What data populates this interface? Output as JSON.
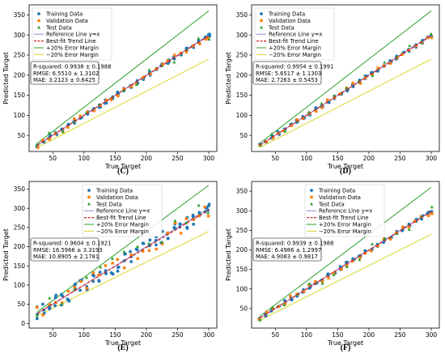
{
  "colors": {
    "training": "#1f77b4",
    "validation": "#ff7f0e",
    "test": "#2ca02c",
    "reference": "#8a8ad6",
    "trend": "#d62728",
    "plus20": "#2ca02c",
    "minus20": "#d6d62a"
  },
  "chart_data": [
    {
      "type": "scatter",
      "caption": "(C)",
      "xlabel": "True Target",
      "ylabel": "Predicted Target",
      "xlim": [
        12,
        313
      ],
      "ylim": [
        10,
        375
      ],
      "x_ticks": [
        50,
        100,
        150,
        200,
        250,
        300
      ],
      "y_ticks": [
        50,
        100,
        150,
        200,
        250,
        300,
        350
      ],
      "legend": [
        "Training Data",
        "Validation Data",
        "Test Data",
        "Reference Line y=x",
        "Best-fit Trend Line",
        "+20% Error Margin",
        "−20% Error Margin"
      ],
      "legend_position": "top-left",
      "stats": [
        "R-squared: 0.9938 ± 0.1988",
        "RMSE: 6.5510 ± 1.3102",
        "MAE: 3.2123 ± 0.6425"
      ],
      "trend": {
        "slope": 0.99,
        "intercept": 1.0
      },
      "noise": {
        "train": 5,
        "val": 7,
        "test": 12
      },
      "x": [
        25,
        35,
        45,
        55,
        65,
        75,
        85,
        95,
        105,
        115,
        125,
        135,
        145,
        155,
        165,
        175,
        185,
        195,
        205,
        215,
        225,
        235,
        245,
        255,
        265,
        275,
        285,
        295,
        300
      ]
    },
    {
      "type": "scatter",
      "caption": "(D)",
      "xlabel": "True Target",
      "ylabel": "Predicted Target",
      "xlim": [
        12,
        313
      ],
      "ylim": [
        10,
        375
      ],
      "x_ticks": [
        50,
        100,
        150,
        200,
        250,
        300
      ],
      "y_ticks": [
        50,
        100,
        150,
        200,
        250,
        300,
        350
      ],
      "legend": [
        "Training Data",
        "Validation Data",
        "Test Data",
        "Reference Line y=x",
        "Best-fit Trend Line",
        "+20% Error Margin",
        "−20% Error Margin"
      ],
      "legend_position": "top-left",
      "stats": [
        "R-squared: 0.9954 ± 0.1991",
        "RMSE: 5.6517 ± 1.1303",
        "MAE: 2.7263 ± 0.5453"
      ],
      "trend": {
        "slope": 0.99,
        "intercept": 1.0
      },
      "noise": {
        "train": 4,
        "val": 6,
        "test": 10
      },
      "x": [
        25,
        35,
        45,
        55,
        65,
        75,
        85,
        95,
        105,
        115,
        125,
        135,
        145,
        155,
        165,
        175,
        185,
        195,
        205,
        215,
        225,
        235,
        245,
        255,
        265,
        275,
        285,
        295,
        300
      ]
    },
    {
      "type": "scatter",
      "caption": "(E)",
      "xlabel": "True Target",
      "ylabel": "Predicted Target",
      "xlim": [
        12,
        313
      ],
      "ylim": [
        -12,
        370
      ],
      "x_ticks": [
        50,
        100,
        150,
        200,
        250,
        300
      ],
      "y_ticks": [
        0,
        50,
        100,
        150,
        200,
        250,
        300,
        350
      ],
      "legend": [
        "Training Data",
        "Validation Data",
        "Test Data",
        "Reference Line y=x",
        "Best-fit Trend Line",
        "+20% Error Margin",
        "−20% Error Margin"
      ],
      "legend_position": "top-center",
      "stats": [
        "R-squared: 0.9604 ± 0.1921",
        "RMSE: 16.5966 ± 3.3193",
        "MAE: 10.8905 ± 2.1781"
      ],
      "trend": {
        "slope": 0.98,
        "intercept": 2.0
      },
      "noise": {
        "train": 18,
        "val": 20,
        "test": 28
      },
      "x": [
        25,
        35,
        45,
        55,
        65,
        75,
        85,
        95,
        105,
        115,
        125,
        135,
        145,
        155,
        165,
        175,
        185,
        195,
        205,
        215,
        225,
        235,
        245,
        255,
        265,
        275,
        285,
        295,
        300
      ]
    },
    {
      "type": "scatter",
      "caption": "(F)",
      "xlabel": "True Target",
      "ylabel": "Predicted Target",
      "xlim": [
        12,
        313
      ],
      "ylim": [
        0,
        375
      ],
      "x_ticks": [
        50,
        100,
        150,
        200,
        250,
        300
      ],
      "y_ticks": [
        50,
        100,
        150,
        200,
        250,
        300,
        350
      ],
      "legend": [
        "Training Data",
        "Validation Data",
        "Test Data",
        "Reference Line y=x",
        "Best-fit Trend Line",
        "+20% Error Margin",
        "−20% Error Margin"
      ],
      "legend_position": "top-center",
      "stats": [
        "R-squared: 0.9939 ± 0.1988",
        "RMSE: 6.4986 ± 1.2997",
        "MAE: 4.9083 ± 0.9817"
      ],
      "trend": {
        "slope": 0.99,
        "intercept": 1.0
      },
      "noise": {
        "train": 5,
        "val": 7,
        "test": 12
      },
      "x": [
        25,
        35,
        45,
        55,
        65,
        75,
        85,
        95,
        105,
        115,
        125,
        135,
        145,
        155,
        165,
        175,
        185,
        195,
        205,
        215,
        225,
        235,
        245,
        255,
        265,
        275,
        285,
        295,
        300
      ]
    }
  ]
}
